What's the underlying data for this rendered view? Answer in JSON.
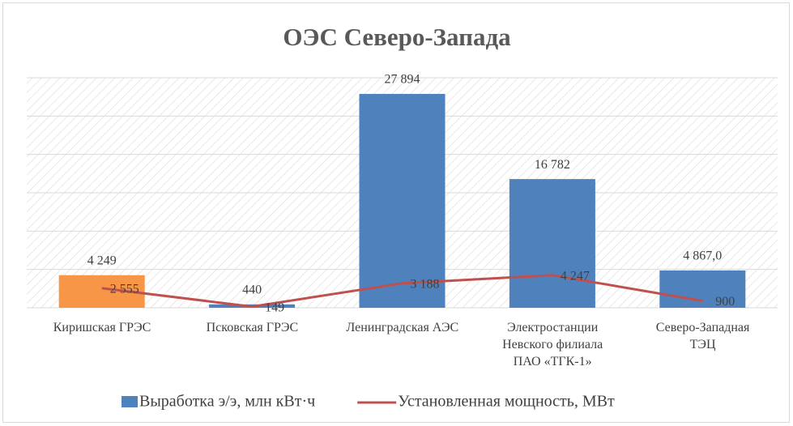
{
  "chart_data": {
    "type": "bar",
    "title": "ОЭС Северо-Запада",
    "categories": [
      "Киришская ГРЭС",
      "Псковская ГРЭС",
      "Ленинградская  АЭС",
      "Электростанции\nНевского филиала\nПАО «ТГК-1»",
      "Северо-Западная\nТЭЦ"
    ],
    "series": [
      {
        "name": "Выработка э/э, млн кВт·ч",
        "type": "bar",
        "color": "#4f81bd",
        "colors": [
          "#f79646",
          "#4f81bd",
          "#4f81bd",
          "#4f81bd",
          "#4f81bd"
        ],
        "values": [
          4249,
          440,
          27894,
          16782,
          4867.0
        ],
        "value_labels": [
          "4 249",
          "440",
          "27 894",
          "16 782",
          "4 867,0"
        ]
      },
      {
        "name": "Установленная мощность, МВт",
        "type": "line",
        "color": "#c0504d",
        "values": [
          2555,
          149,
          3188,
          4247,
          900
        ],
        "value_labels": [
          "2 555",
          "149",
          "3 188",
          "4 247",
          "900"
        ]
      }
    ],
    "ylim": [
      0,
      30000
    ],
    "yticks": [
      0,
      5000,
      10000,
      15000,
      20000,
      25000,
      30000
    ],
    "grid": true,
    "legend": "bottom"
  }
}
